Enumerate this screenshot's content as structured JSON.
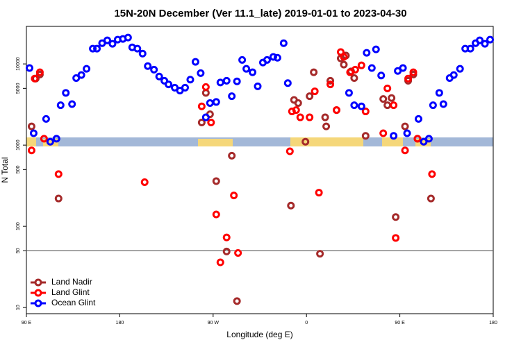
{
  "chart_data": {
    "type": "scatter",
    "title": "15N-20N December (Ver 11.1_late)   2019-01-01 to 2023-04-30",
    "x_label": "Longitude (deg E)",
    "y_label": "N Total",
    "log_y": true,
    "legend": "bottom-left",
    "hline": 50,
    "xlim": [
      90,
      540
    ],
    "xticks": [
      {
        "value": 90,
        "label": "90 E"
      },
      180,
      {
        "value": 270,
        "label": "90 W"
      },
      {
        "value": 360,
        "label": "0"
      },
      {
        "value": 450,
        "label": "90 E"
      },
      {
        "value": 540,
        "label": "180"
      }
    ],
    "ylim": [
      8.4,
      29000
    ],
    "yticks": [
      10,
      50,
      100,
      500,
      1000,
      5000,
      10000
    ],
    "series": [
      {
        "name": "Land Nadir",
        "color": "#a52a2a",
        "x": [
          95,
          99,
          103,
          121,
          259,
          263,
          267,
          273,
          283,
          288,
          293,
          345,
          348,
          352,
          359,
          363,
          367,
          373,
          378,
          379,
          383,
          389,
          393,
          396,
          398,
          403,
          406,
          417,
          434,
          438,
          442,
          446,
          455,
          458,
          463,
          467,
          480
        ],
        "values": [
          1700,
          6600,
          7400,
          220,
          1900,
          4400,
          2400,
          360,
          49,
          740,
          12,
          180,
          3600,
          3300,
          1100,
          4000,
          7900,
          46,
          2200,
          1700,
          6200,
          2700,
          11700,
          9800,
          12700,
          8100,
          6700,
          1300,
          3700,
          3100,
          3800,
          130,
          1700,
          6200,
          7400,
          1200,
          220
        ]
      },
      {
        "name": "Land Glint",
        "color": "#ff0000",
        "x": [
          95,
          98,
          103,
          107,
          121,
          204,
          259,
          263,
          268,
          273,
          277,
          283,
          290,
          294,
          344,
          346,
          350,
          354,
          363,
          368,
          372,
          383,
          389,
          393,
          396,
          402,
          407,
          413,
          417,
          434,
          438,
          444,
          446,
          455,
          458,
          463,
          467,
          481
        ],
        "values": [
          860,
          6600,
          7900,
          1200,
          440,
          350,
          3000,
          5200,
          1900,
          140,
          36,
          73,
          240,
          47,
          840,
          2600,
          2700,
          2200,
          2200,
          4600,
          260,
          5600,
          2700,
          14000,
          12200,
          7900,
          8500,
          9600,
          2600,
          1400,
          5000,
          3100,
          72,
          860,
          6600,
          7900,
          1200,
          440
        ]
      },
      {
        "name": "Ocean Glint",
        "color": "#0000ff",
        "x": [
          93,
          97,
          109,
          113,
          119,
          123,
          128,
          134,
          138,
          143,
          148,
          154,
          158,
          163,
          168,
          173,
          178,
          183,
          188,
          192,
          197,
          202,
          207,
          213,
          218,
          223,
          227,
          233,
          238,
          243,
          248,
          253,
          258,
          263,
          267,
          273,
          277,
          283,
          288,
          293,
          298,
          302,
          308,
          313,
          318,
          322,
          328,
          332,
          338,
          342,
          401,
          406,
          413,
          418,
          423,
          427,
          432,
          444,
          448,
          453,
          457,
          468,
          473,
          478,
          482,
          488,
          492,
          498,
          502,
          508,
          513,
          518,
          523,
          527,
          532,
          537
        ],
        "values": [
          8900,
          1400,
          2100,
          1100,
          1200,
          3100,
          4400,
          3200,
          6700,
          7300,
          8700,
          15400,
          15400,
          18000,
          19500,
          17700,
          19900,
          20300,
          21100,
          16000,
          15400,
          13400,
          9400,
          8500,
          7000,
          6200,
          5600,
          5100,
          4700,
          5100,
          6400,
          10600,
          7700,
          2200,
          3300,
          3400,
          5900,
          6200,
          4000,
          6100,
          11200,
          8700,
          7900,
          5300,
          10400,
          11200,
          12200,
          11900,
          18000,
          5800,
          4400,
          3100,
          3000,
          13700,
          8900,
          15100,
          7200,
          1300,
          8200,
          8900,
          1400,
          2100,
          1100,
          1200,
          3100,
          4400,
          3200,
          6700,
          7300,
          8700,
          15400,
          15400,
          18000,
          19500,
          17700,
          19900
        ]
      }
    ]
  }
}
